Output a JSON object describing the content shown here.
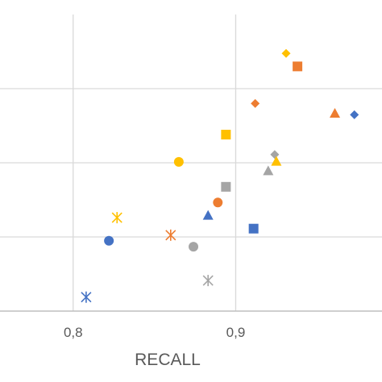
{
  "chart_data": {
    "type": "scatter",
    "title": "",
    "xlabel": "RECALL",
    "ylabel": "",
    "xlim": [
      0.755,
      0.99
    ],
    "ylim": [
      0.0,
      1.0
    ],
    "x_ticks": [
      0.8,
      0.9
    ],
    "x_tick_labels": [
      "0,8",
      "0,9"
    ],
    "y_gridlines": [
      0.25,
      0.5,
      0.75
    ],
    "grid": true,
    "legend": "none",
    "colors": {
      "blue": "#4472c4",
      "orange": "#ed7d31",
      "gray": "#a5a5a5",
      "yellow": "#ffc000",
      "grid": "#d9d9d9",
      "axis": "#bfbfbf"
    },
    "points": [
      {
        "x": 0.808,
        "y": 0.047,
        "shape": "star",
        "color": "blue"
      },
      {
        "x": 0.822,
        "y": 0.237,
        "shape": "circle",
        "color": "blue"
      },
      {
        "x": 0.883,
        "y": 0.323,
        "shape": "triangle",
        "color": "blue"
      },
      {
        "x": 0.911,
        "y": 0.278,
        "shape": "square",
        "color": "blue"
      },
      {
        "x": 0.973,
        "y": 0.662,
        "shape": "diamond",
        "color": "blue"
      },
      {
        "x": 0.86,
        "y": 0.256,
        "shape": "star",
        "color": "orange"
      },
      {
        "x": 0.889,
        "y": 0.366,
        "shape": "circle",
        "color": "orange"
      },
      {
        "x": 0.912,
        "y": 0.7,
        "shape": "diamond",
        "color": "orange"
      },
      {
        "x": 0.938,
        "y": 0.825,
        "shape": "square",
        "color": "orange"
      },
      {
        "x": 0.961,
        "y": 0.667,
        "shape": "triangle",
        "color": "orange"
      },
      {
        "x": 0.883,
        "y": 0.103,
        "shape": "star",
        "color": "gray"
      },
      {
        "x": 0.874,
        "y": 0.217,
        "shape": "circle",
        "color": "gray"
      },
      {
        "x": 0.894,
        "y": 0.419,
        "shape": "square",
        "color": "gray"
      },
      {
        "x": 0.92,
        "y": 0.473,
        "shape": "triangle",
        "color": "gray"
      },
      {
        "x": 0.924,
        "y": 0.528,
        "shape": "diamond",
        "color": "gray"
      },
      {
        "x": 0.827,
        "y": 0.315,
        "shape": "star",
        "color": "yellow"
      },
      {
        "x": 0.865,
        "y": 0.503,
        "shape": "circle",
        "color": "yellow"
      },
      {
        "x": 0.894,
        "y": 0.595,
        "shape": "square",
        "color": "yellow"
      },
      {
        "x": 0.925,
        "y": 0.505,
        "shape": "triangle",
        "color": "yellow"
      },
      {
        "x": 0.931,
        "y": 0.869,
        "shape": "diamond",
        "color": "yellow"
      }
    ]
  }
}
